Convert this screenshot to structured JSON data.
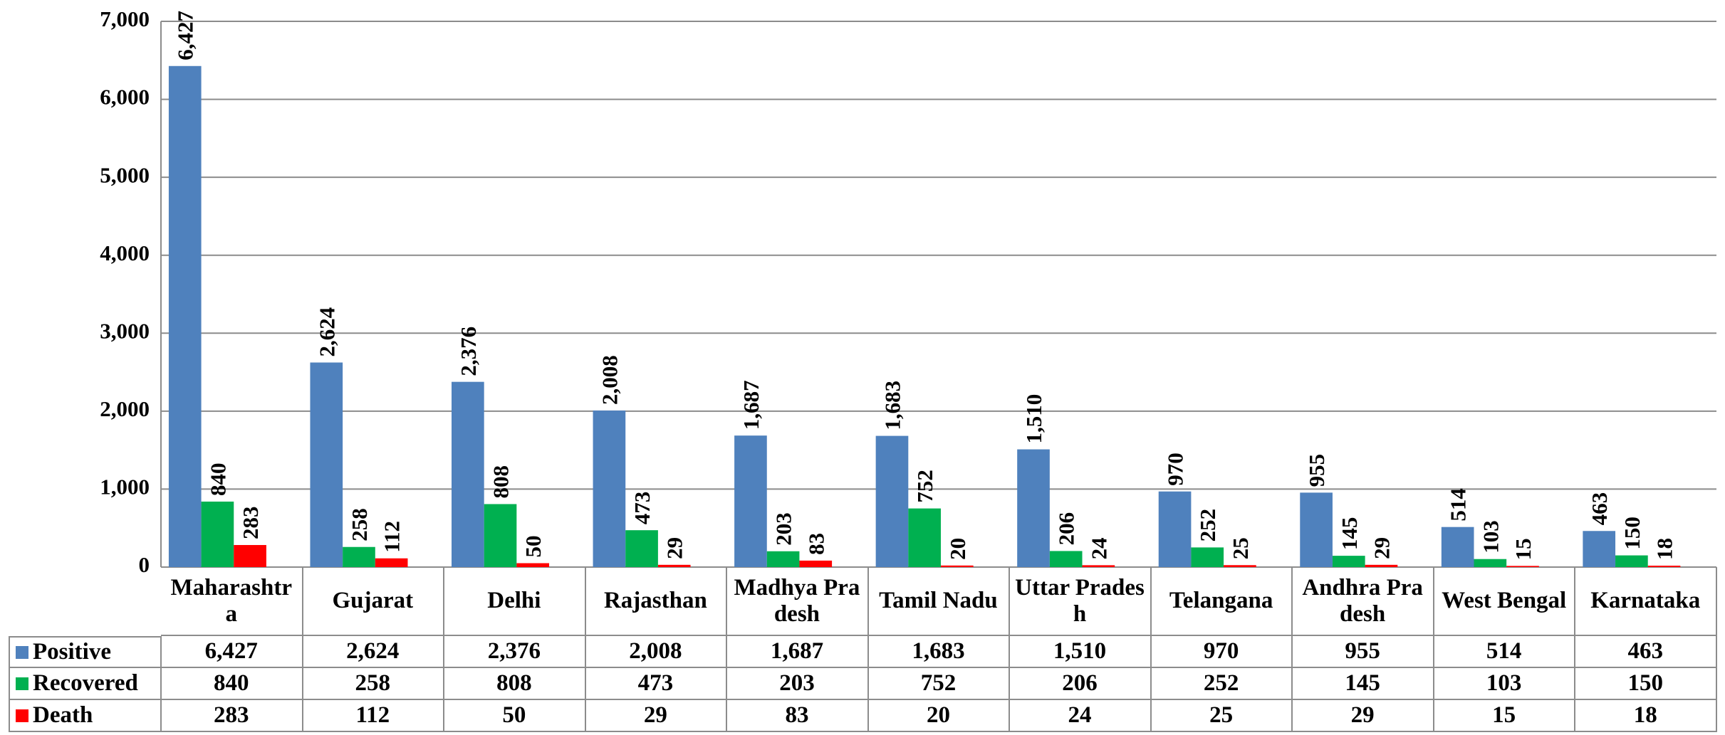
{
  "chart_data": {
    "type": "bar",
    "categories": [
      "Maharashtra",
      "Gujarat",
      "Delhi",
      "Rajasthan",
      "Madhya Pradesh",
      "Tamil Nadu",
      "Uttar Pradesh",
      "Telangana",
      "Andhra Pradesh",
      "West Bengal",
      "Karnataka"
    ],
    "series": [
      {
        "name": "Positive",
        "color": "#4f81bd",
        "values": [
          6427,
          2624,
          2376,
          2008,
          1687,
          1683,
          1510,
          970,
          955,
          514,
          463
        ],
        "value_labels": [
          "6,427",
          "2,624",
          "2,376",
          "2,008",
          "1,687",
          "1,683",
          "1,510",
          "970",
          "955",
          "514",
          "463"
        ]
      },
      {
        "name": "Recovered",
        "color": "#00b050",
        "values": [
          840,
          258,
          808,
          473,
          203,
          752,
          206,
          252,
          145,
          103,
          150
        ],
        "value_labels": [
          "840",
          "258",
          "808",
          "473",
          "203",
          "752",
          "206",
          "252",
          "145",
          "103",
          "150"
        ]
      },
      {
        "name": "Death",
        "color": "#ff0000",
        "values": [
          283,
          112,
          50,
          29,
          83,
          20,
          24,
          25,
          29,
          15,
          18
        ],
        "value_labels": [
          "283",
          "112",
          "50",
          "29",
          "83",
          "20",
          "24",
          "25",
          "29",
          "15",
          "18"
        ]
      }
    ],
    "ylim": [
      0,
      7000
    ],
    "yticks": [
      0,
      {
        "value": 1000,
        "label": "1,000"
      },
      {
        "value": 2000,
        "label": "2,000"
      },
      {
        "value": 3000,
        "label": "3,000"
      },
      {
        "value": 4000,
        "label": "4,000"
      },
      {
        "value": 5000,
        "label": "5,000"
      },
      {
        "value": 6000,
        "label": "6,000"
      },
      {
        "value": 7000,
        "label": "7,000"
      }
    ],
    "grid": true
  }
}
